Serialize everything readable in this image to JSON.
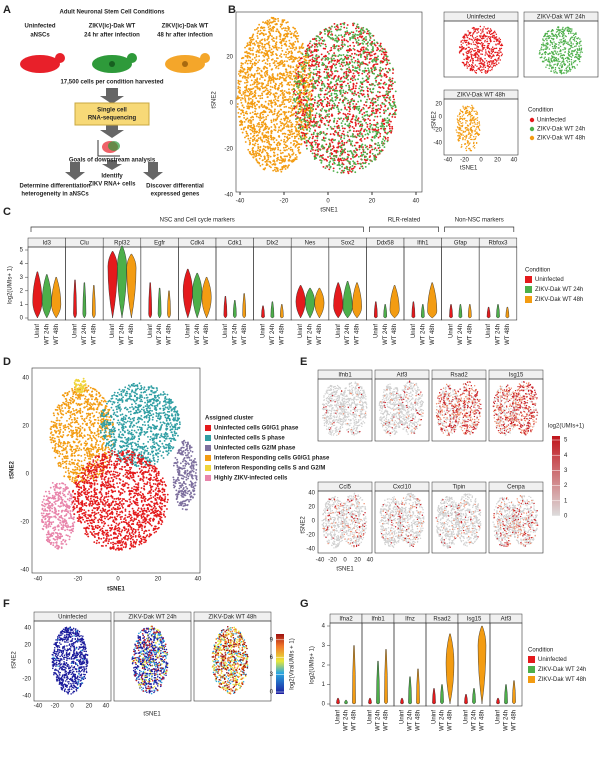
{
  "panel_labels": [
    "A",
    "B",
    "C",
    "D",
    "E",
    "F",
    "G"
  ],
  "a": {
    "title": "Adult Neuronal Stem Cell Conditions",
    "conditions": [
      {
        "lines": [
          "Uninfected",
          "aNSCs"
        ],
        "color": "#e8202a"
      },
      {
        "lines": [
          "ZIKV(ic)-Dak WT",
          "24 hr after infection"
        ],
        "color": "#2e9a3a"
      },
      {
        "lines": [
          "ZIKV(ic)-Dak WT",
          "48 hr after infection"
        ],
        "color": "#f4a62a"
      }
    ],
    "harvest": "17,500 cells per condition harvested",
    "seq": [
      "Single cell",
      "RNA-sequencing"
    ],
    "goals": "Goals of downstream analysis",
    "outcomes": [
      [
        "Determine differentiation",
        "heterogeneity in aNSCs"
      ],
      [
        "Identify",
        "ZIKV RNA+ cells"
      ],
      [
        "Discover differential",
        "expressed genes"
      ]
    ]
  },
  "b": {
    "x_label": "tSNE1",
    "y_label": "tSNE2",
    "xticks": [
      "-40",
      "-20",
      "0",
      "20",
      "40"
    ],
    "yticks": [
      "20",
      "0",
      "-20",
      "-40"
    ],
    "facets": [
      "Uninfected",
      "ZIKV-Dak WT 24h",
      "ZIKV-Dak WT 48h"
    ],
    "legend_title": "Condition",
    "legend": [
      {
        "name": "Uninfected",
        "color": "#e41a1c"
      },
      {
        "name": "ZIKV-Dak WT 24h",
        "color": "#4daf4a"
      },
      {
        "name": "ZIKV-Dak WT 48h",
        "color": "#f39c12"
      }
    ]
  },
  "c": {
    "groups": [
      {
        "name": "NSC and Cell cycle markers",
        "genes": [
          {
            "name": "Id3",
            "max": [
              3.4,
              3.2,
              3.0
            ],
            "mode": [
              1.2,
              1.2,
              1.0
            ]
          },
          {
            "name": "Clu",
            "max": [
              2.8,
              2.6,
              2.4
            ],
            "mode": [
              0.3,
              0.3,
              0.3
            ]
          },
          {
            "name": "Rpl32",
            "max": [
              4.9,
              5.3,
              4.7
            ],
            "mode": [
              3.8,
              3.8,
              3.7
            ]
          },
          {
            "name": "Egfr",
            "max": [
              2.6,
              2.2,
              2.0
            ],
            "mode": [
              0.3,
              0.3,
              0.3
            ]
          },
          {
            "name": "Cdk4",
            "max": [
              3.6,
              3.3,
              3.0
            ],
            "mode": [
              2.0,
              1.9,
              1.5
            ]
          },
          {
            "name": "Cdk1",
            "max": [
              1.6,
              1.3,
              1.8
            ],
            "mode": [
              0.2,
              0.2,
              0.2
            ]
          },
          {
            "name": "Dlx2",
            "max": [
              0.9,
              1.2,
              1.0
            ],
            "mode": [
              0.1,
              0.1,
              0.1
            ]
          },
          {
            "name": "Nes",
            "max": [
              2.4,
              2.2,
              2.2
            ],
            "mode": [
              1.2,
              1.2,
              1.1
            ]
          },
          {
            "name": "Sox2",
            "max": [
              2.6,
              2.7,
              2.6
            ],
            "mode": [
              0.9,
              0.8,
              0.8
            ]
          }
        ]
      },
      {
        "name": "RLR-related",
        "genes": [
          {
            "name": "Ddx58",
            "max": [
              1.2,
              1.0,
              2.4
            ],
            "mode": [
              0.1,
              0.1,
              0.6
            ]
          },
          {
            "name": "Ifih1",
            "max": [
              1.2,
              1.0,
              2.6
            ],
            "mode": [
              0.1,
              0.1,
              0.5
            ]
          }
        ]
      },
      {
        "name": "Non-NSC markers",
        "genes": [
          {
            "name": "Gfap",
            "max": [
              1.0,
              1.0,
              1.0
            ],
            "mode": [
              0.1,
              0.1,
              0.1
            ]
          },
          {
            "name": "Rbfox3",
            "max": [
              0.8,
              1.0,
              0.8
            ],
            "mode": [
              0.1,
              0.1,
              0.1
            ]
          }
        ]
      }
    ],
    "conditions": [
      "Uninf",
      "WT 24h",
      "WT 48h"
    ],
    "y_label": "log2(UMIs+ 1)",
    "yticks": [
      0,
      1,
      2,
      3,
      4,
      5
    ],
    "legend_title": "Condition",
    "legend": [
      {
        "name": "Uninfected",
        "color": "#e41a1c"
      },
      {
        "name": "ZIKV-Dak WT 24h",
        "color": "#4daf4a"
      },
      {
        "name": "ZIKV-Dak WT 48h",
        "color": "#f39c12"
      }
    ]
  },
  "d": {
    "x_label": "tSNE1",
    "y_label": "tSNE2",
    "xticks": [
      "-40",
      "-20",
      "0",
      "20",
      "40"
    ],
    "yticks": [
      "40",
      "20",
      "0",
      "-20",
      "-40"
    ],
    "legend_title": "Assigned cluster",
    "clusters": [
      {
        "name": "Uninfected cells G0/G1 phase",
        "color": "#e41a1c"
      },
      {
        "name": "Uninfected cells S phase",
        "color": "#2f9ea3"
      },
      {
        "name": "Uninfected cells G2/M phase",
        "color": "#7d6f9e"
      },
      {
        "name": "Inteferon Responding cells G0/G1 phase",
        "color": "#f39c12"
      },
      {
        "name": "Inteferon Responding cells S and G2/M",
        "color": "#f0d43a"
      },
      {
        "name": "Highly ZIKV-infected cells",
        "color": "#e884aa"
      }
    ]
  },
  "e": {
    "genes": [
      "Ifnb1",
      "Atf3",
      "Rsad2",
      "Isg15",
      "Ccl5",
      "Cxcl10",
      "Tipin",
      "Cenpa"
    ],
    "x_label": "tSNE1",
    "y_label": "tSNE2",
    "xticks": [
      "-40",
      "-20",
      "0",
      "20",
      "40"
    ],
    "yticks": [
      "40",
      "20",
      "0",
      "-20",
      "-40"
    ],
    "colorbar_title": "log2(UMIs+1)",
    "colorbar_ticks": [
      0,
      1,
      2,
      3,
      4,
      5
    ]
  },
  "f": {
    "facets": [
      "Uninfected",
      "ZIKV-Dak WT 24h",
      "ZIKV-Dak WT 48h"
    ],
    "x_label": "tSNE1",
    "y_label": "tSNE2",
    "xticks": [
      "-40",
      "-20",
      "0",
      "20",
      "40"
    ],
    "yticks": [
      "40",
      "20",
      "0",
      "-20",
      "-40"
    ],
    "colorbar_title": "log2(ViralUMIs + 1)",
    "colorbar_ticks": [
      0,
      3,
      6,
      9
    ]
  },
  "g": {
    "genes": [
      {
        "name": "Ifna2",
        "max": [
          0.3,
          0.2,
          3.0
        ],
        "mode": [
          0.05,
          0.05,
          0.05
        ]
      },
      {
        "name": "Ifnb1",
        "max": [
          0.3,
          2.2,
          2.8
        ],
        "mode": [
          0.05,
          0.05,
          0.1
        ]
      },
      {
        "name": "Ifnz",
        "max": [
          0.3,
          1.4,
          1.8
        ],
        "mode": [
          0.05,
          0.05,
          0.05
        ]
      },
      {
        "name": "Rsad2",
        "max": [
          0.8,
          1.0,
          3.6
        ],
        "mode": [
          0.05,
          0.1,
          2.1
        ]
      },
      {
        "name": "Isg15",
        "max": [
          0.5,
          0.8,
          4.0
        ],
        "mode": [
          0.05,
          0.1,
          3.0
        ]
      },
      {
        "name": "Atf3",
        "max": [
          0.3,
          1.0,
          1.2
        ],
        "mode": [
          0.05,
          0.05,
          0.1
        ]
      }
    ],
    "conditions": [
      "Uninf",
      "WT 24h",
      "WT 48h"
    ],
    "y_label": "log2(UMIs+ 1)",
    "yticks": [
      0,
      1,
      2,
      3,
      4
    ],
    "legend_title": "Condition",
    "legend": [
      {
        "name": "Uninfected",
        "color": "#e41a1c"
      },
      {
        "name": "ZIKV-Dak WT 24h",
        "color": "#4daf4a"
      },
      {
        "name": "ZIKV-Dak WT 48h",
        "color": "#f39c12"
      }
    ]
  }
}
